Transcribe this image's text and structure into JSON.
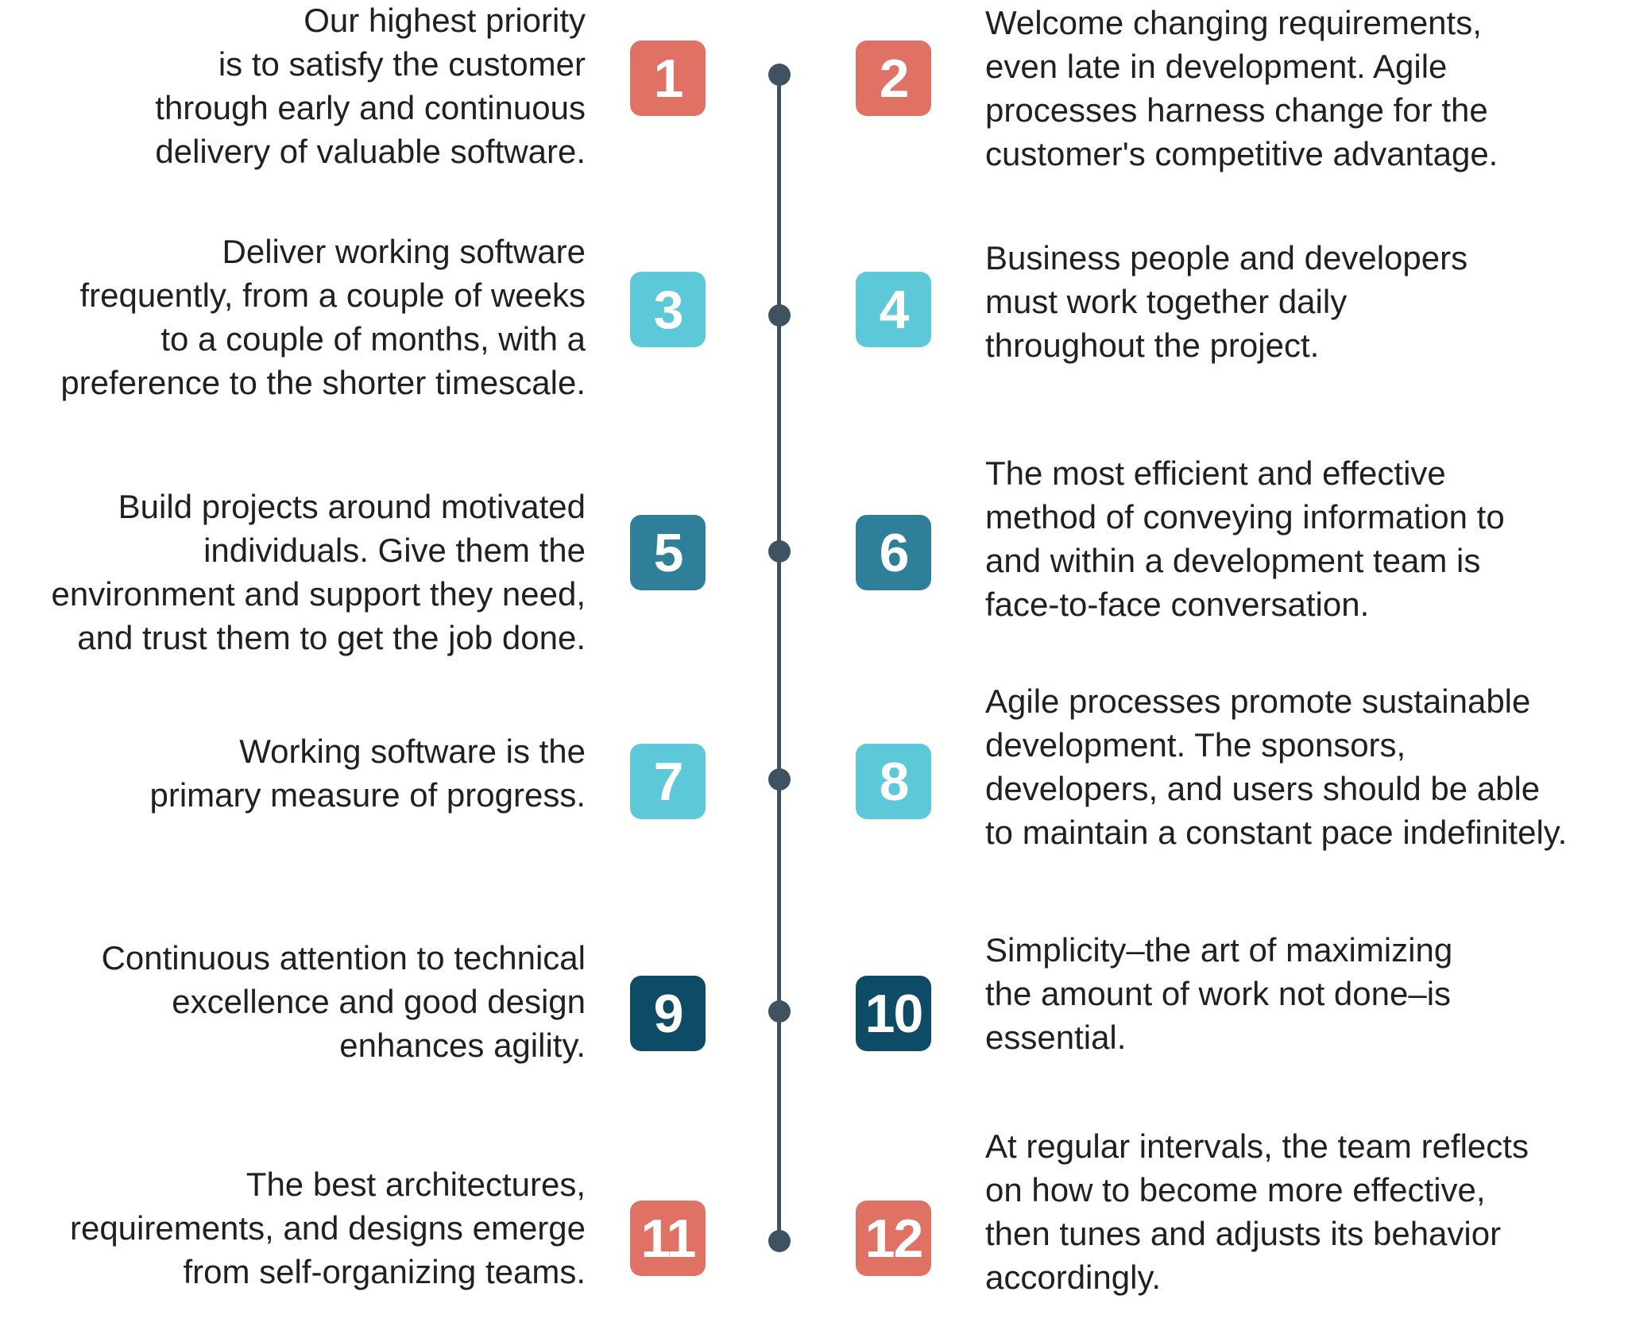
{
  "colors": {
    "coral": "#e07265",
    "light_blue": "#5dc9d8",
    "teal": "#2f7f9a",
    "navy": "#0e4b66",
    "line": "#3f5262"
  },
  "principles": [
    {
      "number": "1",
      "color": "coral",
      "text": "Our highest priority\nis to satisfy the customer\nthrough early and continuous\ndelivery of valuable software."
    },
    {
      "number": "2",
      "color": "coral",
      "text": "Welcome changing requirements,\neven late in development. Agile\nprocesses harness change for the\ncustomer's competitive advantage."
    },
    {
      "number": "3",
      "color": "light_blue",
      "text": "Deliver working software\nfrequently, from a couple of weeks\nto a couple of months, with a\npreference to the shorter timescale."
    },
    {
      "number": "4",
      "color": "light_blue",
      "text": "Business people and developers\nmust work together daily\nthroughout the project."
    },
    {
      "number": "5",
      "color": "teal",
      "text": "Build projects around motivated\nindividuals. Give them the\nenvironment and support they need,\nand trust them to get the job done."
    },
    {
      "number": "6",
      "color": "teal",
      "text": "The most efficient and effective\nmethod of conveying information to\nand within a development team is\nface-to-face conversation."
    },
    {
      "number": "7",
      "color": "light_blue",
      "text": "Working software is the\nprimary measure of progress."
    },
    {
      "number": "8",
      "color": "light_blue",
      "text": "Agile processes promote sustainable\ndevelopment. The sponsors,\ndevelopers, and users should be able\nto maintain a constant pace indefinitely."
    },
    {
      "number": "9",
      "color": "navy",
      "text": "Continuous attention to technical\nexcellence and good design\nenhances agility."
    },
    {
      "number": "10",
      "color": "navy",
      "text": "Simplicity–the art of maximizing\nthe amount of work not done–is\nessential."
    },
    {
      "number": "11",
      "color": "coral",
      "text": "The best architectures,\nrequirements, and designs emerge\nfrom self-organizing teams."
    },
    {
      "number": "12",
      "color": "coral",
      "text": "At regular intervals, the team reflects\non how to become more effective,\nthen tunes and adjusts its behavior\naccordingly."
    }
  ]
}
